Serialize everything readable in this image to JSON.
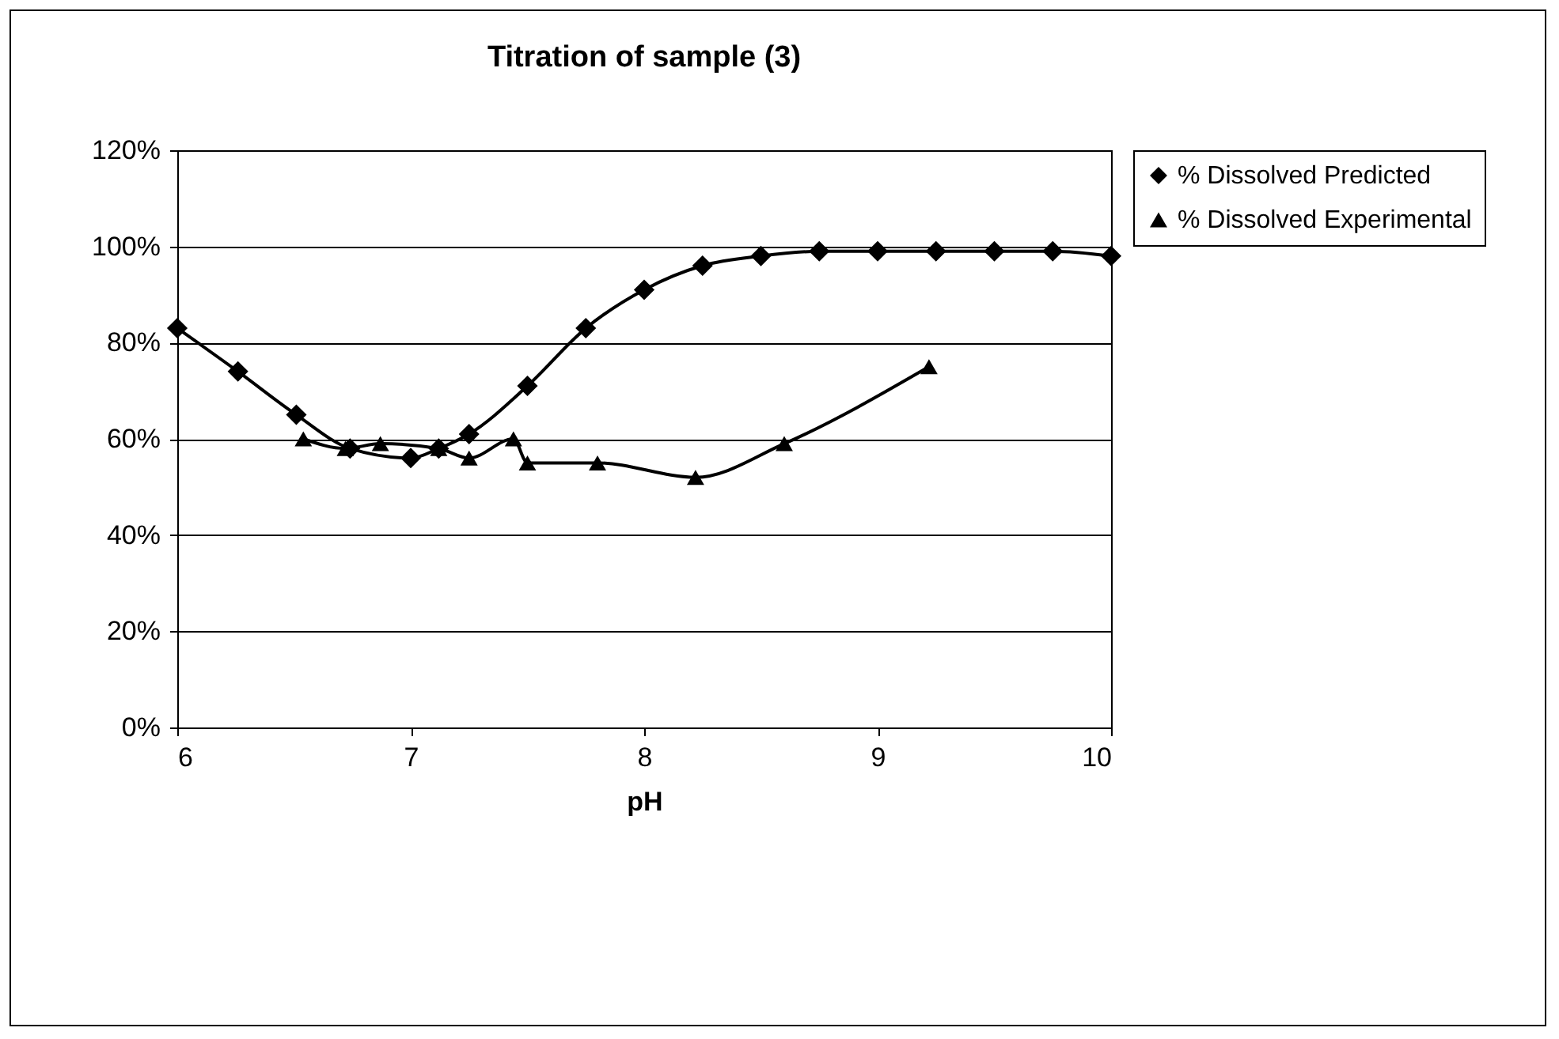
{
  "chart_data": {
    "type": "line",
    "title": "Titration of sample (3)",
    "xlabel": "pH",
    "xlim": [
      6,
      10
    ],
    "xticks": [
      6,
      7,
      8,
      9,
      10
    ],
    "ylim": [
      0,
      120
    ],
    "yticks": [
      {
        "value": 0,
        "label": "0%"
      },
      {
        "value": 20,
        "label": "20%"
      },
      {
        "value": 40,
        "label": "40%"
      },
      {
        "value": 60,
        "label": "60%"
      },
      {
        "value": 80,
        "label": "80%"
      },
      {
        "value": 100,
        "label": "100%"
      },
      {
        "value": 120,
        "label": "120%"
      }
    ],
    "grid": "y",
    "legend": "right",
    "series": [
      {
        "name": "% Dissolved Predicted",
        "color": "#000000",
        "marker": "diamond",
        "x": [
          6,
          6.26,
          6.51,
          6.74,
          7,
          7.12,
          7.25,
          7.5,
          7.75,
          8,
          8.25,
          8.5,
          8.75,
          9,
          9.25,
          9.5,
          9.75,
          10
        ],
        "values": [
          83,
          74,
          65,
          58,
          56,
          58,
          61,
          71,
          83,
          91,
          96,
          98,
          99,
          99,
          99,
          99,
          99,
          98
        ]
      },
      {
        "name": "% Dissolved Experimental",
        "color": "#000000",
        "marker": "triangle",
        "x": [
          6.54,
          6.72,
          6.87,
          7.12,
          7.25,
          7.44,
          7.5,
          7.8,
          8.22,
          8.6,
          9.22
        ],
        "values": [
          60,
          58,
          59,
          58,
          56,
          60,
          55,
          55,
          52,
          59,
          75
        ]
      }
    ]
  }
}
